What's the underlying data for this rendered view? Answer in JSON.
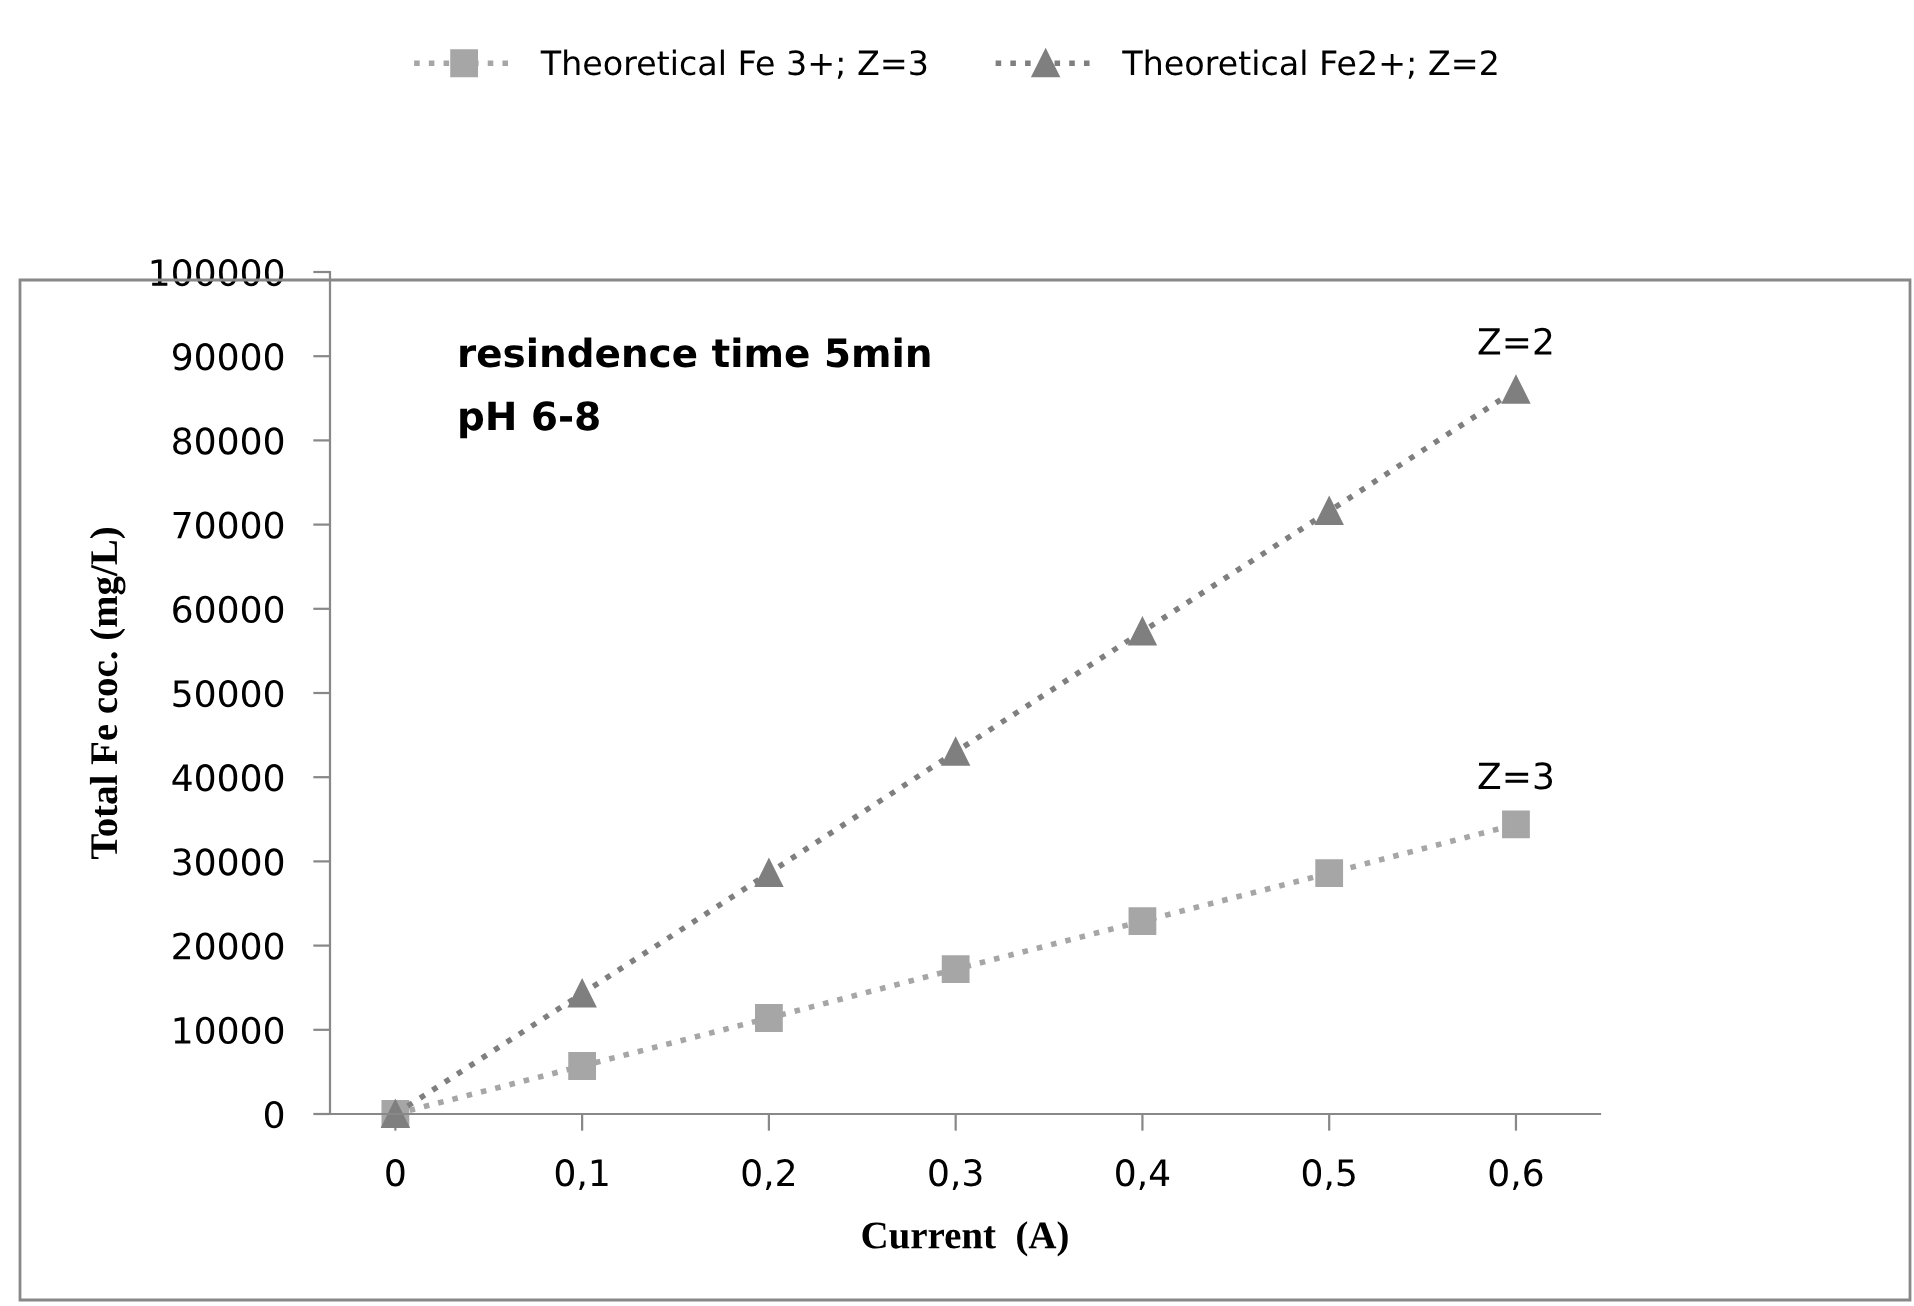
{
  "chart_data": {
    "type": "line",
    "xlabel": "Current  (A)",
    "ylabel": "Total Fe coc. (mg/L)",
    "categories": [
      "0",
      "0,1",
      "0,2",
      "0,3",
      "0,4",
      "0,5",
      "0,6"
    ],
    "series": [
      {
        "name": "Theoretical Fe 3+; Z=3",
        "color": "#a6a6a6",
        "marker": "square",
        "values": [
          0,
          5700,
          11400,
          17200,
          22900,
          28600,
          34400
        ]
      },
      {
        "name": "Theoretical Fe2+; Z=2",
        "color": "#7f7f7f",
        "marker": "triangle",
        "values": [
          0,
          14300,
          28600,
          43000,
          57300,
          71600,
          86000
        ]
      }
    ],
    "line_style": "dotted",
    "ylim": [
      0,
      100000
    ],
    "yticks": [
      0,
      10000,
      20000,
      30000,
      40000,
      50000,
      60000,
      70000,
      80000,
      90000,
      100000
    ],
    "grid": false,
    "legend": "top",
    "annotations": [
      "resindence time 5min",
      "pH 6-8",
      {
        "text": "Z=2",
        "x": "0,6",
        "y": 86000
      },
      {
        "text": "Z=3",
        "x": "0,6",
        "y": 34400
      }
    ]
  }
}
